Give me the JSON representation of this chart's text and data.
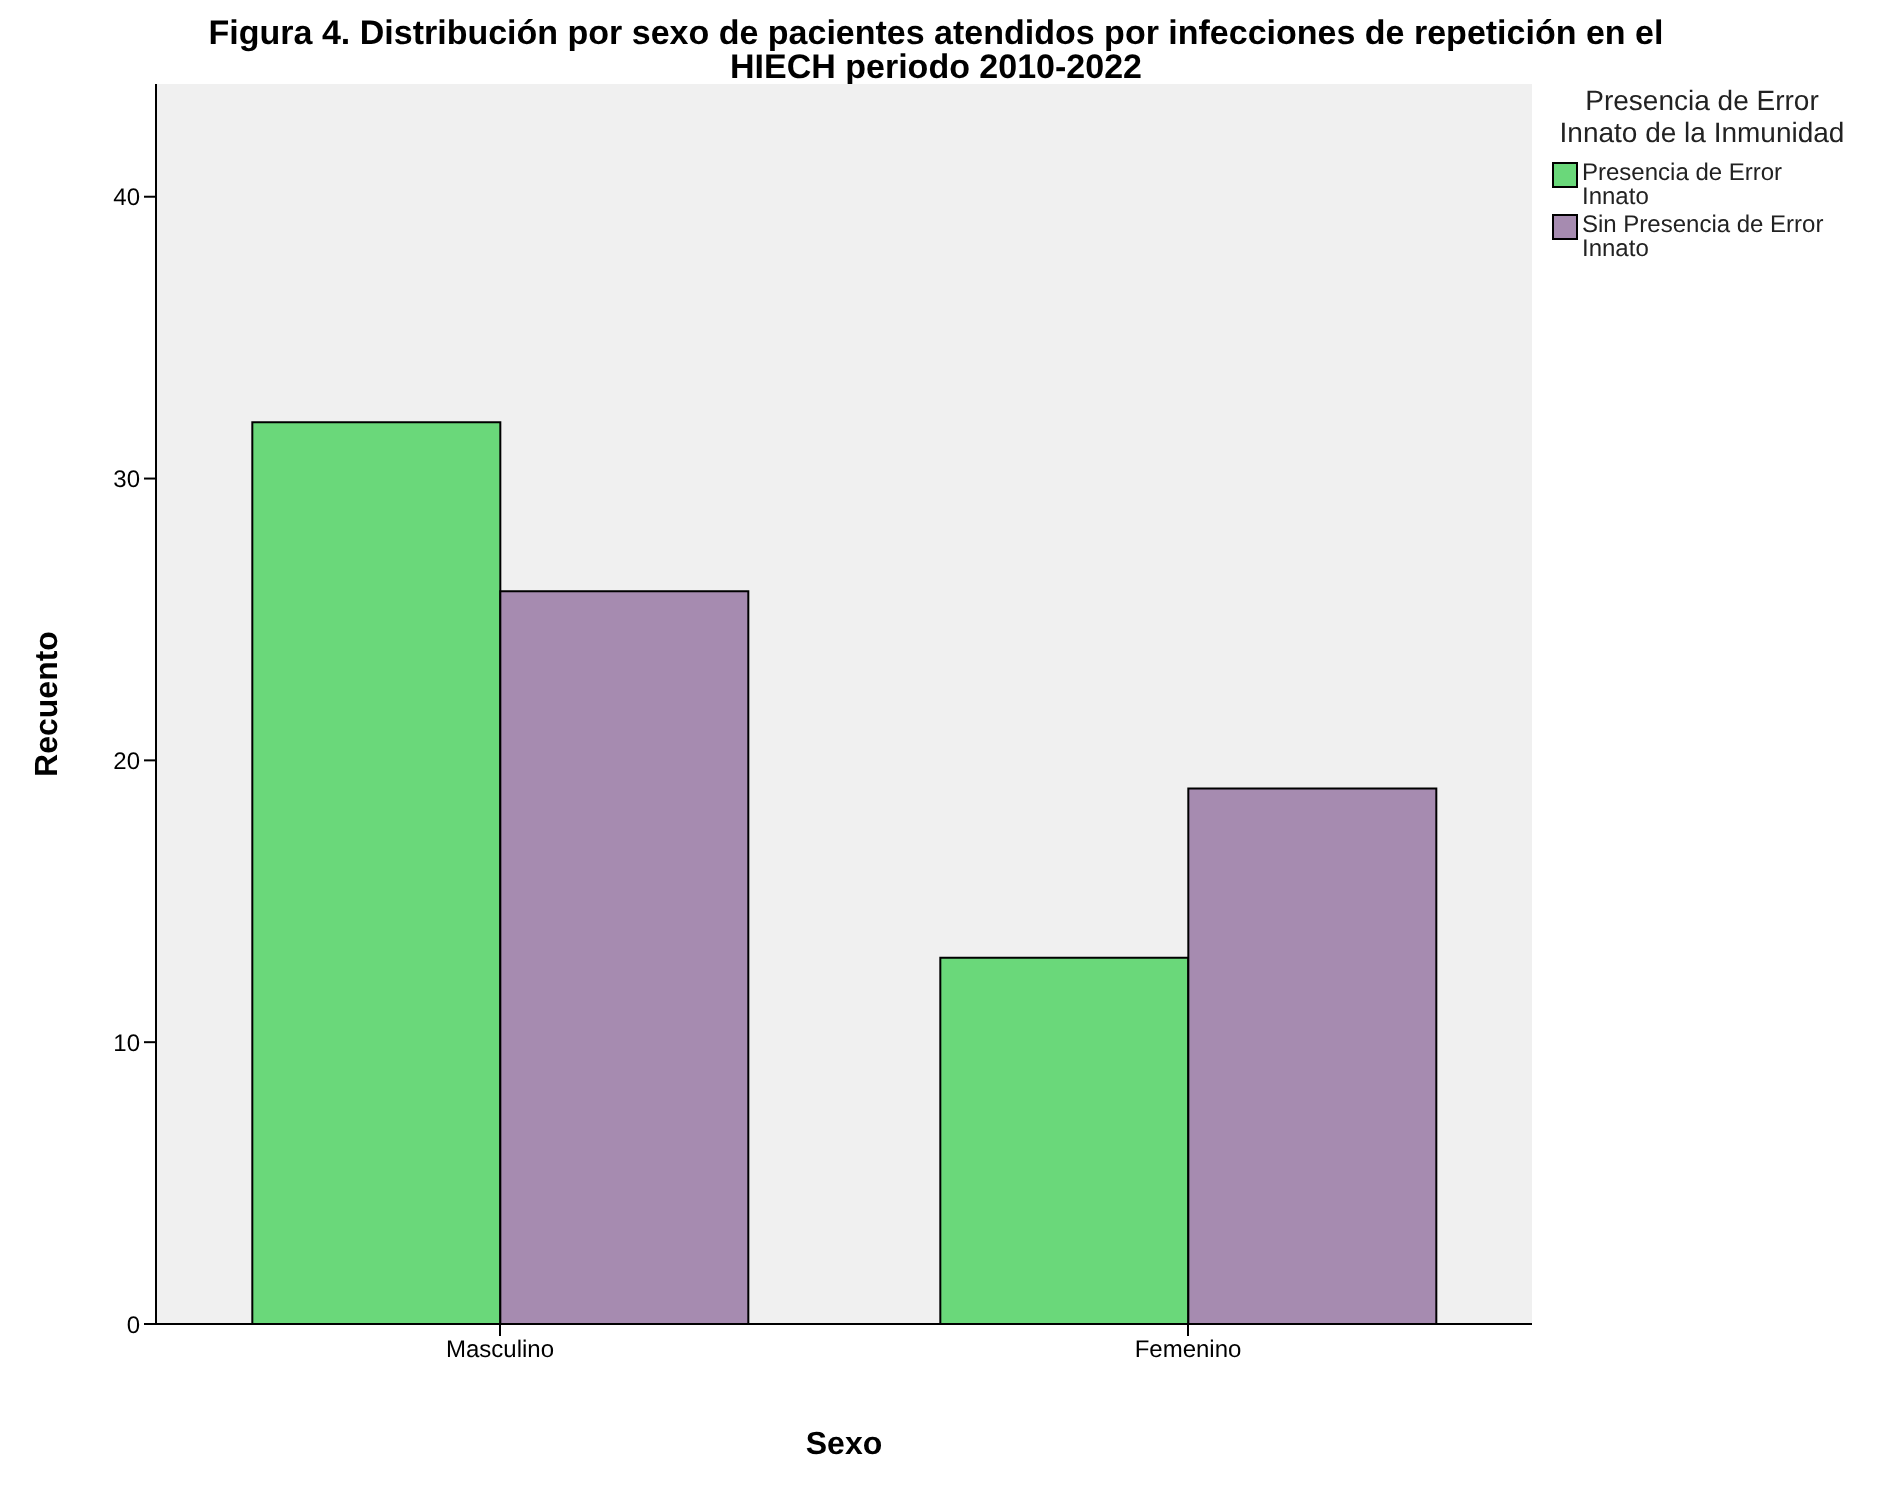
{
  "chart_data": {
    "type": "bar",
    "title": "Figura 4. Distribución por sexo de pacientes atendidos por infecciones de repetición en el HIECH periodo 2010-2022",
    "xlabel": "Sexo",
    "ylabel": "Recuento",
    "legend_title": "Presencia de Error Innato de la Inmunidad",
    "categories": [
      "Masculino",
      "Femenino"
    ],
    "series": [
      {
        "name": "Presencia de Error Innato",
        "color": "#6ad87a",
        "values": [
          32,
          13
        ]
      },
      {
        "name": "Sin Presencia de Error Innato",
        "color": "#a68bb0",
        "values": [
          26,
          19
        ]
      }
    ],
    "ylim": [
      0,
      44
    ],
    "yticks": [
      0,
      10,
      20,
      30,
      40
    ],
    "grid": false,
    "legend": "top right"
  }
}
